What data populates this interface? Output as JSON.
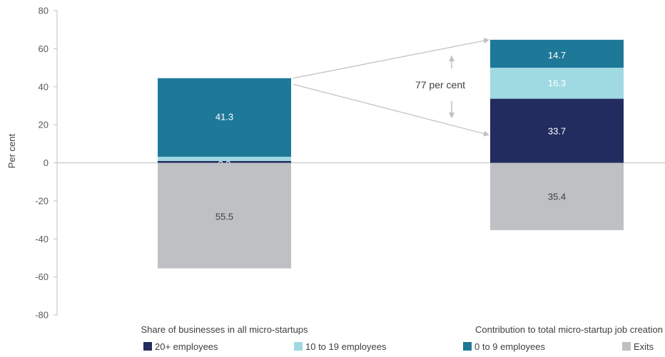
{
  "chart_data": {
    "type": "bar",
    "stacked": true,
    "title": "",
    "xlabel": "",
    "ylabel": "Per cent",
    "ylim": [
      -80,
      80
    ],
    "yticks": [
      80,
      60,
      40,
      20,
      0,
      -20,
      -40,
      -60,
      -80
    ],
    "grid": false,
    "legend_position": "bottom",
    "categories": [
      "Share of businesses in all micro-startups",
      "Contribution to total micro-startup job creation"
    ],
    "series": [
      {
        "name": "20+ employees",
        "color": "#232C5E",
        "values": [
          1.0,
          33.7
        ],
        "labels": [
          "1.0",
          "33.7"
        ],
        "label_color": [
          "#404040",
          "#ffffff"
        ]
      },
      {
        "name": "10 to 19 employees",
        "color": "#9FD9E2",
        "values": [
          2.2,
          16.3
        ],
        "labels": [
          "2.2",
          "16.3"
        ],
        "label_color": [
          "#ffffff",
          "#ffffff"
        ]
      },
      {
        "name": "0 to 9 employees",
        "color": "#1E7898",
        "values": [
          41.3,
          14.7
        ],
        "labels": [
          "41.3",
          "14.7"
        ],
        "label_color": [
          "#ffffff",
          "#ffffff"
        ]
      },
      {
        "name": "Exits",
        "color": "#BFC0C4",
        "values": [
          -55.5,
          -35.4
        ],
        "labels": [
          "55.5",
          "35.4"
        ],
        "label_color": [
          "#404040",
          "#404040"
        ]
      }
    ],
    "annotation": {
      "text": "77 per cent"
    }
  }
}
